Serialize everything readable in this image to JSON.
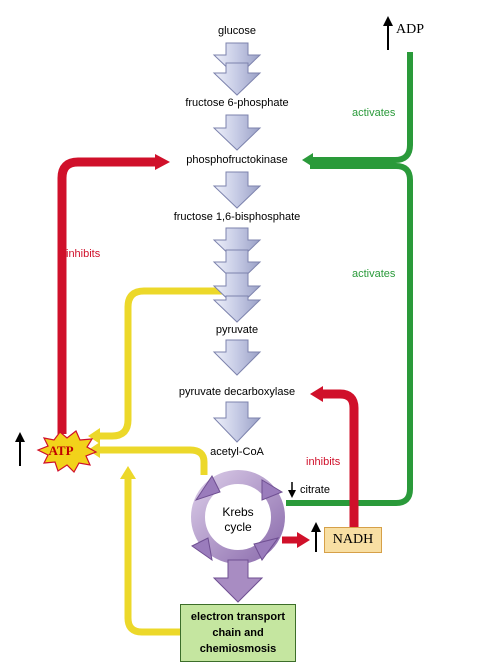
{
  "pathway": {
    "nodes": [
      {
        "id": "glucose",
        "label": "glucose"
      },
      {
        "id": "f6p",
        "label": "fructose 6-phosphate"
      },
      {
        "id": "pfk",
        "label": "phosphofructokinase"
      },
      {
        "id": "f16bp",
        "label": "fructose 1,6-bisphosphate"
      },
      {
        "id": "pyruvate",
        "label": "pyruvate"
      },
      {
        "id": "pdc",
        "label": "pyruvate decarboxylase"
      },
      {
        "id": "acetylcoa",
        "label": "acetyl-CoA"
      }
    ],
    "krebs": {
      "line1": "Krebs",
      "line2": "cycle"
    },
    "etc": {
      "line1": "electron transport",
      "line2": "chain and",
      "line3": "chemiosmosis"
    }
  },
  "metabolites": {
    "atp": "ATP",
    "adp": "ADP",
    "nadh": "NADH",
    "citrate": "citrate"
  },
  "regulation": {
    "atp_inhibits": "inhibits",
    "adp_activates": "activates",
    "citrate_activates": "activates",
    "nadh_inhibits": "inhibits"
  },
  "colors": {
    "inhibit": "#d0102a",
    "activate": "#2a9a3a",
    "atp_path": "#ecd82a",
    "krebs": "#a88cc2",
    "step_arrow": "#cfd2ea"
  }
}
